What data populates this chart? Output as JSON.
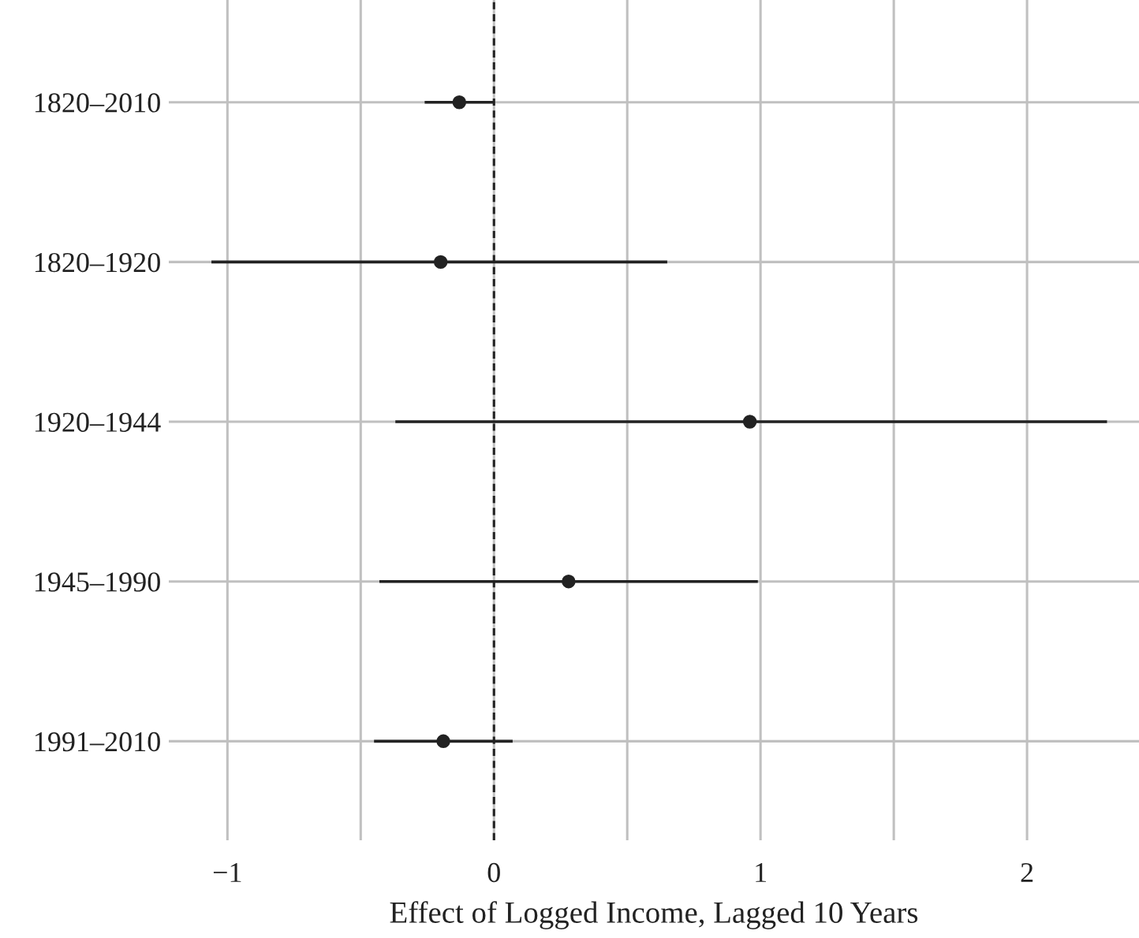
{
  "chart_data": {
    "type": "scatter",
    "orientation": "horizontal",
    "xlabel": "Effect of Logged Income, Lagged 10 Years",
    "categories": [
      "1820–2010",
      "1820–1920",
      "1920–1944",
      "1945–1990",
      "1991–2010"
    ],
    "values": [
      -0.13,
      -0.2,
      0.96,
      0.28,
      -0.19
    ],
    "errors": [
      [
        -0.26,
        0.0
      ],
      [
        -1.06,
        0.65
      ],
      [
        -0.37,
        2.3
      ],
      [
        -0.43,
        0.99
      ],
      [
        -0.45,
        0.07
      ]
    ],
    "color": "#222222",
    "marker": "circle",
    "xlim": [
      -1.22,
      2.42
    ],
    "xticks": [
      {
        "value": -1,
        "label": "−1"
      },
      {
        "value": -0.5,
        "label": null
      },
      0,
      {
        "value": 0.5,
        "label": null
      },
      1,
      {
        "value": 1.5,
        "label": null
      },
      2
    ],
    "ref_lines": [
      {
        "axis": "x",
        "value": 0,
        "color": "#222222",
        "line_style": "dashed"
      }
    ],
    "grid": true
  }
}
